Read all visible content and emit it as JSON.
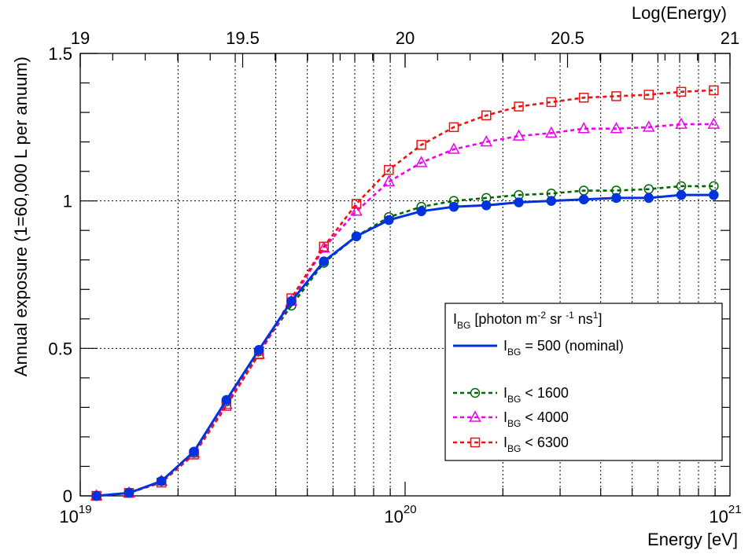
{
  "chart_data": {
    "type": "line",
    "xlabel": "Energy [eV]",
    "ylabel": "Annual exposure (1=60,000 L per anuum)",
    "top_axis_label": "Log(Energy)",
    "x_scale": "log",
    "xlim": [
      1e+19,
      1e+21
    ],
    "ylim": [
      0,
      1.5
    ],
    "grid": true,
    "bottom_ticks": [
      {
        "value": 1e+19,
        "base": "10",
        "exp": "19"
      },
      {
        "value": 1e+20,
        "base": "10",
        "exp": "20"
      },
      {
        "value": 1e+21,
        "base": "10",
        "exp": "21"
      }
    ],
    "top_ticks": [
      {
        "log_value": 19,
        "label": "19"
      },
      {
        "log_value": 19.5,
        "label": "19.5"
      },
      {
        "log_value": 20,
        "label": "20"
      },
      {
        "log_value": 20.5,
        "label": "20.5"
      },
      {
        "log_value": 21,
        "label": "21"
      }
    ],
    "y_ticks": [
      {
        "value": 0,
        "label": "0"
      },
      {
        "value": 0.5,
        "label": "0.5"
      },
      {
        "value": 1,
        "label": "1"
      },
      {
        "value": 1.5,
        "label": "1.5"
      }
    ],
    "log10_energy": [
      19.05,
      19.15,
      19.25,
      19.35,
      19.45,
      19.55,
      19.65,
      19.75,
      19.85,
      19.95,
      20.05,
      20.15,
      20.25,
      20.35,
      20.45,
      20.55,
      20.65,
      20.75,
      20.85,
      20.95
    ],
    "series": [
      {
        "key": "nominal",
        "label_sub": "BG",
        "label_rest": " = 500 (nominal)",
        "color": "#0033dd",
        "dash": "solid",
        "marker": "filled-circle",
        "values": [
          0.0,
          0.01,
          0.05,
          0.15,
          0.325,
          0.495,
          0.66,
          0.795,
          0.88,
          0.935,
          0.965,
          0.98,
          0.985,
          0.995,
          1.0,
          1.005,
          1.01,
          1.01,
          1.02,
          1.02
        ]
      },
      {
        "key": "bg1600",
        "label_sub": "BG",
        "label_rest": " < 1600",
        "color": "#006600",
        "dash": "dashed",
        "marker": "open-circle",
        "values": [
          0.0,
          0.01,
          0.05,
          0.145,
          0.32,
          0.49,
          0.645,
          0.79,
          0.88,
          0.945,
          0.98,
          1.0,
          1.01,
          1.02,
          1.025,
          1.035,
          1.035,
          1.04,
          1.05,
          1.05
        ]
      },
      {
        "key": "bg4000",
        "label_sub": "BG",
        "label_rest": " < 4000",
        "color": "#ee00ee",
        "dash": "dashed",
        "marker": "open-triangle",
        "values": [
          0.0,
          0.01,
          0.05,
          0.145,
          0.31,
          0.48,
          0.66,
          0.84,
          0.965,
          1.065,
          1.13,
          1.175,
          1.2,
          1.22,
          1.23,
          1.245,
          1.245,
          1.25,
          1.26,
          1.26
        ]
      },
      {
        "key": "bg6300",
        "label_sub": "BG",
        "label_rest": " < 6300",
        "color": "#ee1111",
        "dash": "dashed",
        "marker": "open-square",
        "values": [
          0.0,
          0.01,
          0.045,
          0.14,
          0.305,
          0.48,
          0.67,
          0.845,
          0.99,
          1.105,
          1.19,
          1.25,
          1.29,
          1.32,
          1.335,
          1.35,
          1.355,
          1.36,
          1.37,
          1.375
        ]
      }
    ],
    "legend": {
      "placement": "center-right",
      "header_sub": "BG",
      "header_rest": " [photon m",
      "header_exp1": "-2",
      "header_mid1": " sr ",
      "header_exp2": "-1",
      "header_mid2": " ns",
      "header_exp3": "1",
      "header_end": "]",
      "letter": "I"
    }
  }
}
